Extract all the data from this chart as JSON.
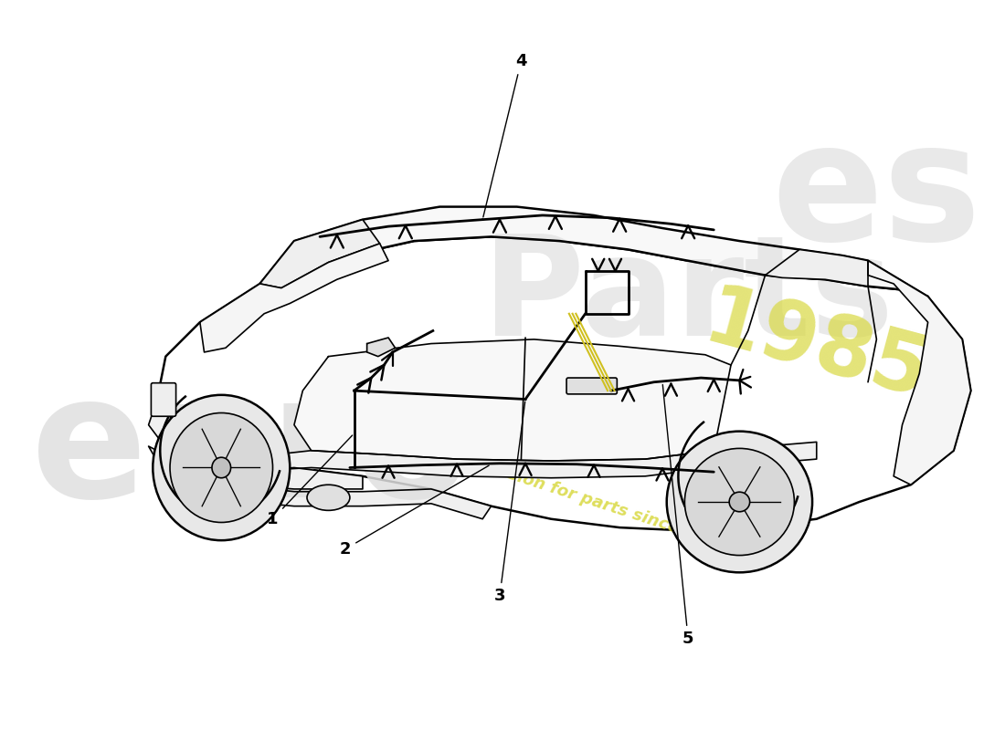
{
  "background_color": "#ffffff",
  "line_color": "#000000",
  "lw_body": 1.8,
  "lw_detail": 1.2,
  "lw_harness": 2.0,
  "watermark_euro_color": "#d8d8d8",
  "watermark_parts_color": "#d8d8d8",
  "watermark_yellow_color": "#e0e040",
  "part_labels": [
    "1",
    "2",
    "3",
    "4",
    "5"
  ],
  "fig_width": 11.0,
  "fig_height": 8.0,
  "dpi": 100
}
